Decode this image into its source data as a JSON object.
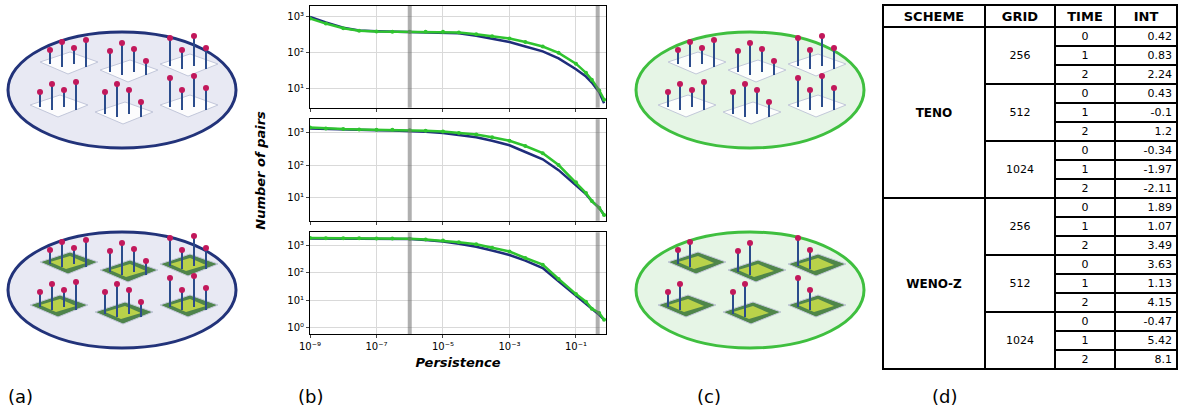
{
  "panels": [
    "(a)",
    "(b)",
    "(c)",
    "(d)"
  ],
  "chart_data": [
    {
      "type": "line",
      "log": true,
      "grid": true,
      "tick_labels": "y",
      "x": [
        1e-09,
        3e-09,
        1e-08,
        3e-08,
        1e-07,
        3e-07,
        1e-06,
        3e-06,
        1e-05,
        3e-05,
        0.0001,
        0.0003,
        0.001,
        0.003,
        0.01,
        0.03,
        0.1,
        0.2,
        0.3,
        0.5,
        0.7
      ],
      "xlim": [
        1e-09,
        0.8
      ],
      "xticks": [
        {
          "value": 1e-09,
          "label": "10⁻⁹"
        },
        {
          "value": 1e-07,
          "label": "10⁻⁷"
        },
        {
          "value": 1e-05,
          "label": "10⁻⁵"
        },
        {
          "value": 0.001,
          "label": "10⁻³"
        },
        {
          "value": 0.1,
          "label": "10⁻¹"
        }
      ],
      "ylim": [
        3,
        2000
      ],
      "yticks": [
        {
          "value": 10,
          "label": "10¹"
        },
        {
          "value": 100,
          "label": "10²"
        },
        {
          "value": 1000,
          "label": "10³"
        }
      ],
      "vertical_lines": [
        1e-06,
        0.45
      ],
      "series": [
        {
          "color": "#1f2d7b",
          "line_style": "solid",
          "values": [
            1000,
            700,
            500,
            420,
            400,
            390,
            385,
            380,
            375,
            350,
            300,
            250,
            200,
            150,
            110,
            70,
            35,
            22,
            15,
            8,
            4
          ]
        },
        {
          "color": "#2fc42f",
          "marker": "circle",
          "values": [
            900,
            650,
            480,
            410,
            390,
            385,
            385,
            385,
            385,
            365,
            330,
            290,
            250,
            200,
            150,
            100,
            50,
            28,
            18,
            9,
            5
          ]
        }
      ]
    },
    {
      "type": "line",
      "log": true,
      "grid": true,
      "tick_labels": "y",
      "ylabel": "Number of pairs",
      "x": [
        1e-09,
        3e-09,
        1e-08,
        3e-08,
        1e-07,
        3e-07,
        1e-06,
        3e-06,
        1e-05,
        3e-05,
        0.0001,
        0.0003,
        0.001,
        0.003,
        0.01,
        0.03,
        0.1,
        0.2,
        0.3,
        0.5,
        0.7
      ],
      "xlim": [
        1e-09,
        0.8
      ],
      "xticks": [
        {
          "value": 1e-09,
          "label": "10⁻⁹"
        },
        {
          "value": 1e-07,
          "label": "10⁻⁷"
        },
        {
          "value": 1e-05,
          "label": "10⁻⁵"
        },
        {
          "value": 0.001,
          "label": "10⁻³"
        },
        {
          "value": 0.1,
          "label": "10⁻¹"
        }
      ],
      "ylim": [
        2,
        2500
      ],
      "yticks": [
        {
          "value": 10,
          "label": "10¹"
        },
        {
          "value": 100,
          "label": "10²"
        },
        {
          "value": 1000,
          "label": "10³"
        }
      ],
      "vertical_lines": [
        1e-06,
        0.45
      ],
      "series": [
        {
          "color": "#1f2d7b",
          "line_style": "solid",
          "values": [
            1300,
            1250,
            1200,
            1180,
            1150,
            1120,
            1100,
            1030,
            950,
            830,
            700,
            550,
            400,
            250,
            150,
            70,
            25,
            13,
            8,
            5,
            3
          ]
        },
        {
          "color": "#2fc42f",
          "marker": "circle",
          "values": [
            1400,
            1300,
            1250,
            1220,
            1200,
            1180,
            1150,
            1100,
            1050,
            950,
            850,
            700,
            550,
            380,
            230,
            100,
            30,
            14,
            8,
            5,
            3
          ]
        }
      ]
    },
    {
      "type": "line",
      "log": true,
      "grid": true,
      "xlabel": "Persistence",
      "x": [
        1e-09,
        3e-09,
        1e-08,
        3e-08,
        1e-07,
        3e-07,
        1e-06,
        3e-06,
        1e-05,
        3e-05,
        0.0001,
        0.0003,
        0.001,
        0.003,
        0.01,
        0.03,
        0.1,
        0.2,
        0.3,
        0.5,
        0.7
      ],
      "xlim": [
        1e-09,
        0.8
      ],
      "xticks": [
        {
          "value": 1e-09,
          "label": "10⁻⁹"
        },
        {
          "value": 1e-07,
          "label": "10⁻⁷"
        },
        {
          "value": 1e-05,
          "label": "10⁻⁵"
        },
        {
          "value": 0.001,
          "label": "10⁻³"
        },
        {
          "value": 0.1,
          "label": "10⁻¹"
        }
      ],
      "ylim": [
        0.6,
        3000
      ],
      "yticks": [
        {
          "value": 1,
          "label": "10⁰"
        },
        {
          "value": 10,
          "label": "10¹"
        },
        {
          "value": 100,
          "label": "10²"
        },
        {
          "value": 1000,
          "label": "10³"
        }
      ],
      "vertical_lines": [
        1e-06,
        0.45
      ],
      "series": [
        {
          "color": "#1f2d7b",
          "line_style": "solid",
          "values": [
            1800,
            1790,
            1780,
            1770,
            1760,
            1730,
            1700,
            1580,
            1400,
            1150,
            900,
            650,
            450,
            280,
            150,
            50,
            15,
            8,
            5,
            3,
            2
          ]
        },
        {
          "color": "#2fc42f",
          "marker": "circle",
          "values": [
            1850,
            1840,
            1830,
            1820,
            1800,
            1780,
            1750,
            1650,
            1500,
            1300,
            1100,
            820,
            600,
            350,
            200,
            60,
            17,
            9,
            5,
            3.5,
            2
          ]
        }
      ]
    }
  ],
  "table": {
    "header": [
      "SCHEME",
      "GRID",
      "TIME",
      "INT"
    ],
    "groups": [
      {
        "scheme": "TENO",
        "grids": [
          {
            "grid": 256,
            "rows": [
              [
                0,
                0.42
              ],
              [
                1,
                0.83
              ],
              [
                2,
                2.24
              ]
            ]
          },
          {
            "grid": 512,
            "rows": [
              [
                0,
                0.43
              ],
              [
                1,
                -0.1
              ],
              [
                2,
                1.2
              ]
            ]
          },
          {
            "grid": 1024,
            "rows": [
              [
                0,
                -0.34
              ],
              [
                1,
                -1.97
              ],
              [
                2,
                -2.11
              ]
            ]
          }
        ]
      },
      {
        "scheme": "WENO-Z",
        "grids": [
          {
            "grid": 256,
            "rows": [
              [
                0,
                1.89
              ],
              [
                1,
                1.07
              ],
              [
                2,
                3.49
              ]
            ]
          },
          {
            "grid": 512,
            "rows": [
              [
                0,
                3.63
              ],
              [
                1,
                1.13
              ],
              [
                2,
                4.15
              ]
            ]
          },
          {
            "grid": 1024,
            "rows": [
              [
                0,
                -0.47
              ],
              [
                1,
                5.42
              ],
              [
                2,
                8.1
              ]
            ]
          }
        ]
      }
    ]
  }
}
